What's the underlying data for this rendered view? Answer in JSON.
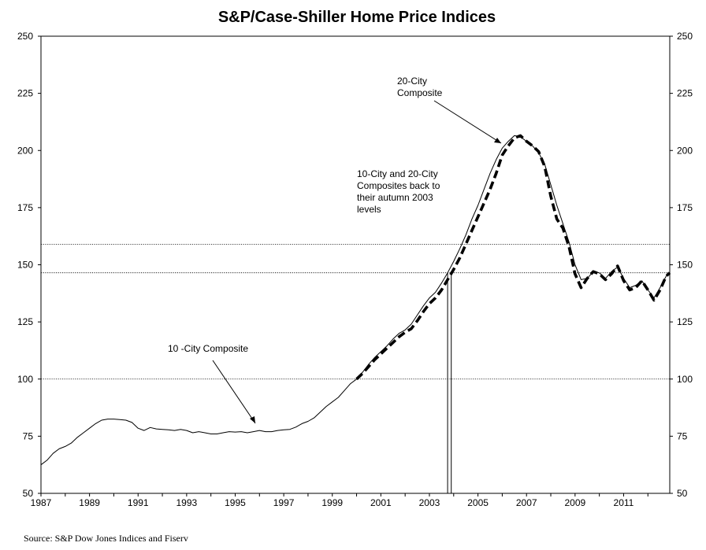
{
  "chart_data": {
    "type": "line",
    "title": "S&P/Case-Shiller Home Price Indices",
    "source": "Source: S&P Dow Jones Indices and Fiserv",
    "xlabel": "",
    "ylabel": "",
    "xlim": [
      1987,
      2012.9
    ],
    "ylim": [
      50,
      250
    ],
    "x_ticks": [
      "1987",
      "1989",
      "1991",
      "1993",
      "1995",
      "1997",
      "1999",
      "2001",
      "2003",
      "2005",
      "2007",
      "2009",
      "2011"
    ],
    "y_ticks": [
      "50",
      "75",
      "100",
      "125",
      "150",
      "175",
      "200",
      "225",
      "250"
    ],
    "grid": false,
    "reference_lines": [
      100,
      146.5,
      159
    ],
    "vertical_markers": [
      2003.75,
      2003.9
    ],
    "series": [
      {
        "name": "10 -City Composite",
        "style": "solid",
        "color": "#000000",
        "points": [
          [
            1987.0,
            62.5
          ],
          [
            1987.25,
            64.5
          ],
          [
            1987.5,
            67.5
          ],
          [
            1987.75,
            69.5
          ],
          [
            1988.0,
            70.5
          ],
          [
            1988.25,
            72.0
          ],
          [
            1988.5,
            74.5
          ],
          [
            1988.75,
            76.5
          ],
          [
            1989.0,
            78.5
          ],
          [
            1989.25,
            80.5
          ],
          [
            1989.5,
            82.0
          ],
          [
            1989.75,
            82.5
          ],
          [
            1990.0,
            82.5
          ],
          [
            1990.25,
            82.3
          ],
          [
            1990.5,
            82.0
          ],
          [
            1990.75,
            81.0
          ],
          [
            1991.0,
            78.5
          ],
          [
            1991.25,
            77.5
          ],
          [
            1991.5,
            78.8
          ],
          [
            1991.75,
            78.2
          ],
          [
            1992.0,
            78.0
          ],
          [
            1992.25,
            77.8
          ],
          [
            1992.5,
            77.5
          ],
          [
            1992.75,
            78.0
          ],
          [
            1993.0,
            77.5
          ],
          [
            1993.25,
            76.5
          ],
          [
            1993.5,
            77.0
          ],
          [
            1993.75,
            76.5
          ],
          [
            1994.0,
            76.0
          ],
          [
            1994.25,
            76.0
          ],
          [
            1994.5,
            76.5
          ],
          [
            1994.75,
            77.0
          ],
          [
            1995.0,
            76.8
          ],
          [
            1995.25,
            77.0
          ],
          [
            1995.5,
            76.5
          ],
          [
            1995.75,
            77.0
          ],
          [
            1996.0,
            77.5
          ],
          [
            1996.25,
            77.0
          ],
          [
            1996.5,
            77.0
          ],
          [
            1996.75,
            77.5
          ],
          [
            1997.0,
            77.8
          ],
          [
            1997.25,
            78.0
          ],
          [
            1997.5,
            79.0
          ],
          [
            1997.75,
            80.5
          ],
          [
            1998.0,
            81.5
          ],
          [
            1998.25,
            83.0
          ],
          [
            1998.5,
            85.5
          ],
          [
            1998.75,
            88.0
          ],
          [
            1999.0,
            90.0
          ],
          [
            1999.25,
            92.0
          ],
          [
            1999.5,
            95.0
          ],
          [
            1999.75,
            98.0
          ],
          [
            2000.0,
            100.0
          ],
          [
            2000.25,
            103.0
          ],
          [
            2000.5,
            106.5
          ],
          [
            2000.75,
            109.5
          ],
          [
            2001.0,
            112.0
          ],
          [
            2001.25,
            114.5
          ],
          [
            2001.5,
            117.5
          ],
          [
            2001.75,
            120.0
          ],
          [
            2002.0,
            121.5
          ],
          [
            2002.25,
            124.0
          ],
          [
            2002.5,
            128.0
          ],
          [
            2002.75,
            132.0
          ],
          [
            2003.0,
            135.5
          ],
          [
            2003.25,
            138.0
          ],
          [
            2003.5,
            142.0
          ],
          [
            2003.75,
            146.5
          ],
          [
            2004.0,
            151.5
          ],
          [
            2004.25,
            157.0
          ],
          [
            2004.5,
            163.0
          ],
          [
            2004.75,
            170.0
          ],
          [
            2005.0,
            176.0
          ],
          [
            2005.25,
            183.0
          ],
          [
            2005.5,
            190.0
          ],
          [
            2005.75,
            196.0
          ],
          [
            2006.0,
            201.0
          ],
          [
            2006.25,
            204.0
          ],
          [
            2006.5,
            206.5
          ],
          [
            2006.75,
            206.0
          ],
          [
            2007.0,
            204.0
          ],
          [
            2007.25,
            202.0
          ],
          [
            2007.5,
            199.0
          ],
          [
            2007.75,
            194.0
          ],
          [
            2008.0,
            185.0
          ],
          [
            2008.25,
            176.0
          ],
          [
            2008.5,
            168.0
          ],
          [
            2008.75,
            160.0
          ],
          [
            2009.0,
            150.0
          ],
          [
            2009.25,
            143.5
          ],
          [
            2009.5,
            144.0
          ],
          [
            2009.75,
            147.0
          ],
          [
            2010.0,
            146.5
          ],
          [
            2010.25,
            144.0
          ],
          [
            2010.5,
            147.0
          ],
          [
            2010.75,
            149.0
          ],
          [
            2011.0,
            144.0
          ],
          [
            2011.25,
            140.0
          ],
          [
            2011.5,
            141.0
          ],
          [
            2011.75,
            143.0
          ],
          [
            2012.0,
            139.0
          ],
          [
            2012.25,
            135.5
          ],
          [
            2012.5,
            140.0
          ],
          [
            2012.75,
            145.0
          ],
          [
            2012.9,
            146.5
          ]
        ]
      },
      {
        "name": "20-City Composite",
        "style": "dashed",
        "color": "#000000",
        "points": [
          [
            2000.0,
            100.0
          ],
          [
            2000.25,
            102.5
          ],
          [
            2000.5,
            105.5
          ],
          [
            2000.75,
            108.5
          ],
          [
            2001.0,
            111.0
          ],
          [
            2001.25,
            113.5
          ],
          [
            2001.5,
            116.0
          ],
          [
            2001.75,
            118.5
          ],
          [
            2002.0,
            120.5
          ],
          [
            2002.25,
            122.0
          ],
          [
            2002.5,
            125.5
          ],
          [
            2002.75,
            129.5
          ],
          [
            2003.0,
            133.0
          ],
          [
            2003.25,
            135.5
          ],
          [
            2003.5,
            139.0
          ],
          [
            2003.75,
            143.5
          ],
          [
            2004.0,
            148.0
          ],
          [
            2004.25,
            153.0
          ],
          [
            2004.5,
            159.0
          ],
          [
            2004.75,
            165.0
          ],
          [
            2005.0,
            171.0
          ],
          [
            2005.25,
            177.0
          ],
          [
            2005.5,
            183.0
          ],
          [
            2005.75,
            190.0
          ],
          [
            2006.0,
            198.0
          ],
          [
            2006.25,
            202.0
          ],
          [
            2006.5,
            205.5
          ],
          [
            2006.75,
            206.5
          ],
          [
            2007.0,
            204.0
          ],
          [
            2007.25,
            202.0
          ],
          [
            2007.5,
            199.5
          ],
          [
            2007.75,
            193.0
          ],
          [
            2008.0,
            180.0
          ],
          [
            2008.25,
            170.0
          ],
          [
            2008.5,
            166.0
          ],
          [
            2008.75,
            158.0
          ],
          [
            2009.0,
            146.0
          ],
          [
            2009.25,
            140.0
          ],
          [
            2009.5,
            144.0
          ],
          [
            2009.75,
            147.0
          ],
          [
            2010.0,
            146.0
          ],
          [
            2010.25,
            143.5
          ],
          [
            2010.5,
            146.0
          ],
          [
            2010.75,
            149.5
          ],
          [
            2011.0,
            143.0
          ],
          [
            2011.25,
            139.0
          ],
          [
            2011.5,
            140.0
          ],
          [
            2011.75,
            143.0
          ],
          [
            2012.0,
            139.0
          ],
          [
            2012.25,
            134.5
          ],
          [
            2012.5,
            139.0
          ],
          [
            2012.75,
            145.0
          ],
          [
            2012.9,
            146.5
          ]
        ]
      }
    ],
    "annotations": [
      {
        "lines": [
          "20-City",
          "Composite"
        ]
      },
      {
        "lines": [
          "10-City and 20-City",
          "Composites  back to",
          "their autumn  2003",
          "levels"
        ]
      },
      {
        "lines": [
          "10 -City Composite"
        ]
      }
    ]
  }
}
